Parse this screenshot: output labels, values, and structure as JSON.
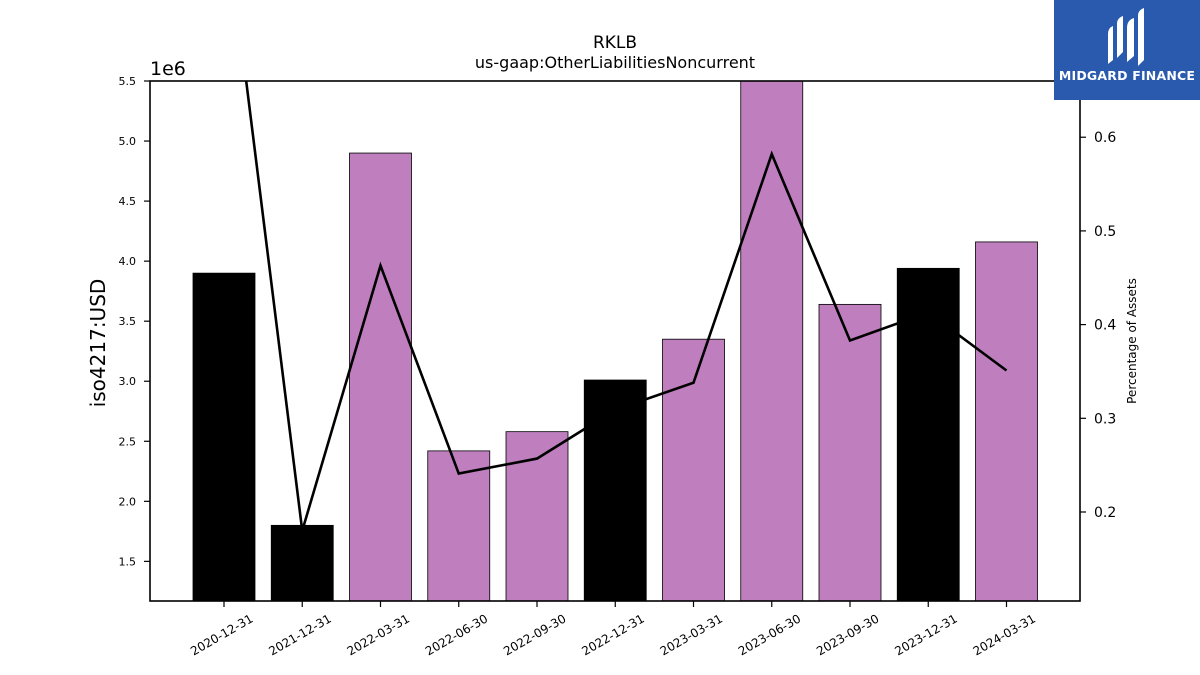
{
  "chart_data": {
    "type": "bar",
    "title": "RKLB",
    "subtitle": "us-gaap:OtherLiabilitiesNoncurrent",
    "ylabel": "iso4217:USD",
    "y2label": "Percentage of Assets",
    "offset_text": "1e6",
    "scale": 1000000,
    "categories": [
      "2020-12-31",
      "2021-12-31",
      "2022-03-31",
      "2022-06-30",
      "2022-09-30",
      "2022-12-31",
      "2023-03-31",
      "2023-06-30",
      "2023-09-30",
      "2023-12-31",
      "2024-03-31"
    ],
    "values": [
      3900000,
      1800000,
      4900000,
      2420000,
      2580000,
      3010000,
      3350000,
      5530000,
      3640000,
      3940000,
      4160000
    ],
    "bar_colors": [
      "#000000",
      "#000000",
      "#bf7fbf",
      "#bf7fbf",
      "#bf7fbf",
      "#000000",
      "#bf7fbf",
      "#bf7fbf",
      "#bf7fbf",
      "#000000",
      "#bf7fbf"
    ],
    "line_series": {
      "name": "Percentage of Assets",
      "color": "#000000",
      "values": [
        0.85,
        0.18,
        0.463,
        0.241,
        0.257,
        0.309,
        0.338,
        0.582,
        0.383,
        0.413,
        0.351
      ]
    },
    "ylim": [
      1.17,
      5.5
    ],
    "y2lim": [
      0.105,
      0.66
    ],
    "yticks": [
      "1.5",
      "2.0",
      "2.5",
      "3.0",
      "3.5",
      "4.0",
      "4.5",
      "5.0",
      "5.5"
    ],
    "y2ticks": [
      "0.2",
      "0.3",
      "0.4",
      "0.5",
      "0.6"
    ],
    "grid": false,
    "legend": "none"
  },
  "logo": {
    "text": "MIDGARD FINANCE",
    "background": "#2a5aae"
  }
}
